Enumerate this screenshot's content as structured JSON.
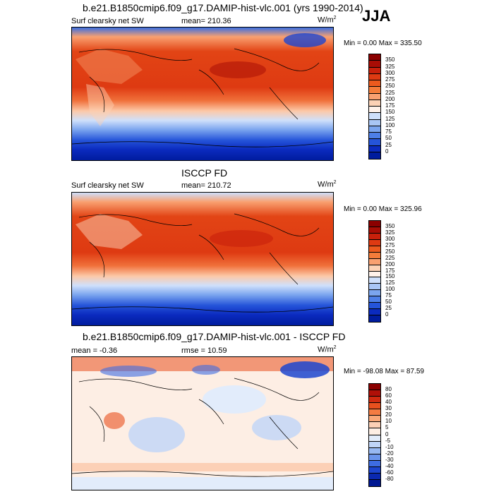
{
  "season": "JJA",
  "panels": [
    {
      "title": "b.e21.B1850cmip6.f09_g17.DAMIP-hist-vlc.001 (yrs 1990-2014)",
      "left": "Surf clearsky net SW",
      "center": "mean= 210.36",
      "units": "W/m",
      "units_sup": "2",
      "minmax": "Min =   0.00 Max = 335.50",
      "levels": [
        "350",
        "325",
        "300",
        "275",
        "250",
        "225",
        "200",
        "175",
        "150",
        "125",
        "100",
        "75",
        "50",
        "25",
        "0"
      ],
      "colors": [
        "#8b0000",
        "#a80d05",
        "#c8200b",
        "#de3a12",
        "#ec5a1e",
        "#f47c3a",
        "#f9a070",
        "#fcd2b6",
        "#fff2ea",
        "#cfe0fb",
        "#a9c6f5",
        "#7ba5ef",
        "#4d7fe8",
        "#2554d9",
        "#0b2bbf",
        "#001c9e"
      ]
    },
    {
      "title": "ISCCP FD",
      "left": "Surf clearsky net SW",
      "center": "mean= 210.72",
      "units": "W/m",
      "units_sup": "2",
      "minmax": "Min =   0.00 Max = 325.96",
      "levels": [
        "350",
        "325",
        "300",
        "275",
        "250",
        "225",
        "200",
        "175",
        "150",
        "125",
        "100",
        "75",
        "50",
        "25",
        "0"
      ],
      "colors": [
        "#8b0000",
        "#a80d05",
        "#c8200b",
        "#de3a12",
        "#ec5a1e",
        "#f47c3a",
        "#f9a070",
        "#fcd2b6",
        "#fff2ea",
        "#cfe0fb",
        "#a9c6f5",
        "#7ba5ef",
        "#4d7fe8",
        "#2554d9",
        "#0b2bbf",
        "#001c9e"
      ]
    },
    {
      "title": "b.e21.B1850cmip6.f09_g17.DAMIP-hist-vlc.001 - ISCCP FD",
      "left": "mean =  -0.36",
      "center": "rmse =  10.59",
      "units": "W/m",
      "units_sup": "2",
      "minmax": "Min = -98.08 Max =  87.59",
      "levels": [
        "80",
        "60",
        "40",
        "30",
        "20",
        "10",
        "5",
        "0",
        "-5",
        "-10",
        "-20",
        "-30",
        "-40",
        "-60",
        "-80"
      ],
      "colors": [
        "#8b0000",
        "#b01008",
        "#d02a10",
        "#e9501e",
        "#f47c42",
        "#f9a878",
        "#fcd0b6",
        "#fdeee4",
        "#e2ecfb",
        "#bfd4f7",
        "#97b8f2",
        "#6a94ec",
        "#3e6ce2",
        "#1d45cf",
        "#0a28b0",
        "#001892"
      ]
    }
  ]
}
